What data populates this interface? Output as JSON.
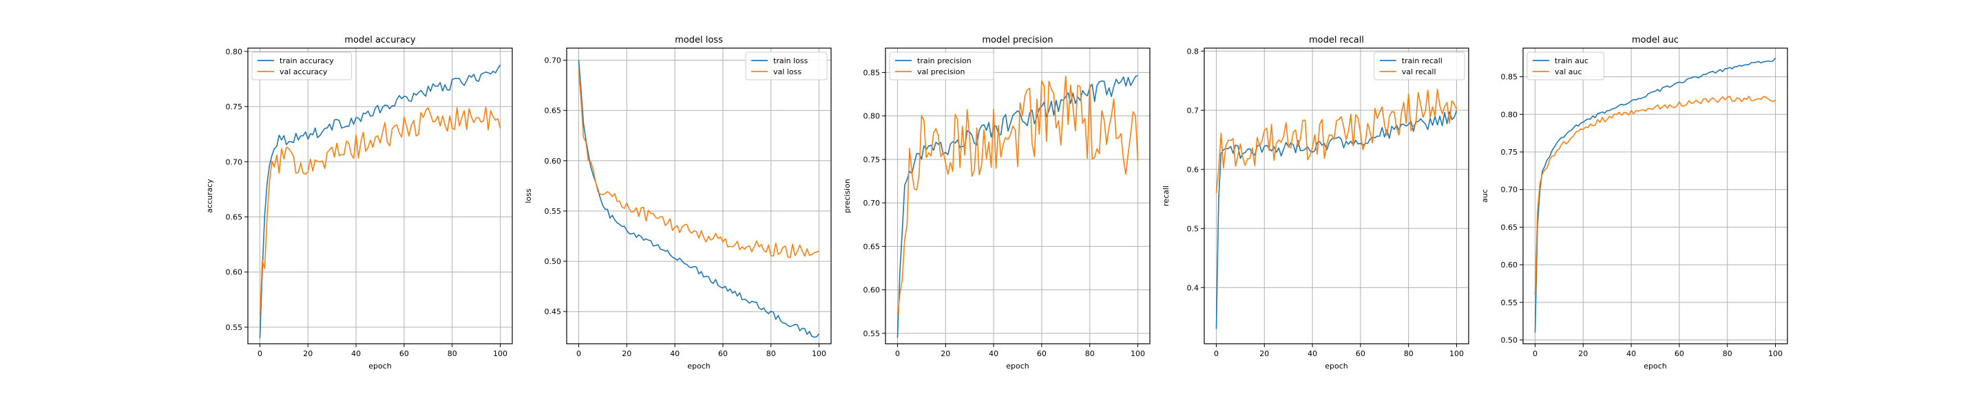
{
  "chart_data": [
    {
      "type": "line",
      "title": "model accuracy",
      "xlabel": "epoch",
      "ylabel": "accuracy",
      "xlim": [
        -5,
        105
      ],
      "ylim": [
        0.535,
        0.803
      ],
      "xticks": [
        0,
        20,
        40,
        60,
        80,
        100
      ],
      "yticks": [
        0.55,
        0.6,
        0.65,
        0.7,
        0.75,
        0.8
      ],
      "ytick_format": 2,
      "legend": "upper left",
      "grid": true,
      "series": [
        {
          "name": "train accuracy",
          "color": "#1f77b4",
          "anchors": [
            [
              0,
              0.54
            ],
            [
              1,
              0.6
            ],
            [
              2,
              0.65
            ],
            [
              3,
              0.68
            ],
            [
              4,
              0.7
            ],
            [
              6,
              0.715
            ],
            [
              8,
              0.722
            ],
            [
              10,
              0.72
            ],
            [
              15,
              0.722
            ],
            [
              20,
              0.725
            ],
            [
              25,
              0.727
            ],
            [
              30,
              0.733
            ],
            [
              40,
              0.738
            ],
            [
              50,
              0.747
            ],
            [
              60,
              0.757
            ],
            [
              70,
              0.765
            ],
            [
              80,
              0.77
            ],
            [
              90,
              0.777
            ],
            [
              96,
              0.78
            ],
            [
              100,
              0.783
            ]
          ],
          "amp": 0.005
        },
        {
          "name": "val accuracy",
          "color": "#ff7f0e",
          "anchors": [
            [
              0,
              0.56
            ],
            [
              1,
              0.61
            ],
            [
              2,
              0.6
            ],
            [
              3,
              0.66
            ],
            [
              5,
              0.69
            ],
            [
              7,
              0.7
            ],
            [
              10,
              0.702
            ],
            [
              15,
              0.7
            ],
            [
              20,
              0.7
            ],
            [
              30,
              0.705
            ],
            [
              40,
              0.713
            ],
            [
              50,
              0.722
            ],
            [
              60,
              0.73
            ],
            [
              70,
              0.737
            ],
            [
              80,
              0.74
            ],
            [
              90,
              0.74
            ],
            [
              96,
              0.737
            ],
            [
              100,
              0.733
            ]
          ],
          "amp": 0.012
        }
      ]
    },
    {
      "type": "line",
      "title": "model loss",
      "xlabel": "epoch",
      "ylabel": "loss",
      "xlim": [
        -5,
        105
      ],
      "ylim": [
        0.418,
        0.712
      ],
      "xticks": [
        0,
        20,
        40,
        60,
        80,
        100
      ],
      "yticks": [
        0.45,
        0.5,
        0.55,
        0.6,
        0.65,
        0.7
      ],
      "ytick_format": 2,
      "legend": "upper right",
      "grid": true,
      "series": [
        {
          "name": "train loss",
          "color": "#1f77b4",
          "anchors": [
            [
              0,
              0.7
            ],
            [
              2,
              0.64
            ],
            [
              4,
              0.605
            ],
            [
              6,
              0.585
            ],
            [
              8,
              0.57
            ],
            [
              10,
              0.555
            ],
            [
              15,
              0.54
            ],
            [
              20,
              0.53
            ],
            [
              30,
              0.518
            ],
            [
              40,
              0.505
            ],
            [
              50,
              0.49
            ],
            [
              60,
              0.475
            ],
            [
              70,
              0.462
            ],
            [
              80,
              0.448
            ],
            [
              90,
              0.435
            ],
            [
              100,
              0.425
            ]
          ],
          "amp": 0.003
        },
        {
          "name": "val loss",
          "color": "#ff7f0e",
          "anchors": [
            [
              0,
              0.69
            ],
            [
              2,
              0.63
            ],
            [
              4,
              0.6
            ],
            [
              6,
              0.585
            ],
            [
              8,
              0.575
            ],
            [
              10,
              0.57
            ],
            [
              15,
              0.562
            ],
            [
              20,
              0.555
            ],
            [
              30,
              0.545
            ],
            [
              40,
              0.535
            ],
            [
              50,
              0.528
            ],
            [
              60,
              0.52
            ],
            [
              70,
              0.515
            ],
            [
              80,
              0.512
            ],
            [
              90,
              0.51
            ],
            [
              100,
              0.512
            ]
          ],
          "amp": 0.007
        }
      ]
    },
    {
      "type": "line",
      "title": "model precision",
      "xlabel": "epoch",
      "ylabel": "precision",
      "xlim": [
        -5,
        105
      ],
      "ylim": [
        0.538,
        0.878
      ],
      "xticks": [
        0,
        20,
        40,
        60,
        80,
        100
      ],
      "yticks": [
        0.55,
        0.6,
        0.65,
        0.7,
        0.75,
        0.8,
        0.85
      ],
      "ytick_format": 2,
      "legend": "upper left",
      "grid": true,
      "series": [
        {
          "name": "train precision",
          "color": "#1f77b4",
          "anchors": [
            [
              0,
              0.545
            ],
            [
              1,
              0.62
            ],
            [
              2,
              0.67
            ],
            [
              3,
              0.71
            ],
            [
              5,
              0.74
            ],
            [
              8,
              0.75
            ],
            [
              10,
              0.755
            ],
            [
              15,
              0.76
            ],
            [
              20,
              0.765
            ],
            [
              30,
              0.775
            ],
            [
              40,
              0.785
            ],
            [
              50,
              0.795
            ],
            [
              60,
              0.805
            ],
            [
              70,
              0.815
            ],
            [
              80,
              0.825
            ],
            [
              90,
              0.832
            ],
            [
              100,
              0.835
            ]
          ],
          "amp": 0.012
        },
        {
          "name": "val precision",
          "color": "#ff7f0e",
          "anchors": [
            [
              0,
              0.57
            ],
            [
              2,
              0.62
            ],
            [
              4,
              0.7
            ],
            [
              6,
              0.74
            ],
            [
              10,
              0.76
            ],
            [
              20,
              0.765
            ],
            [
              30,
              0.77
            ],
            [
              40,
              0.775
            ],
            [
              50,
              0.785
            ],
            [
              60,
              0.8
            ],
            [
              70,
              0.805
            ],
            [
              80,
              0.795
            ],
            [
              90,
              0.785
            ],
            [
              100,
              0.76
            ]
          ],
          "amp": 0.045
        }
      ]
    },
    {
      "type": "line",
      "title": "model recall",
      "xlabel": "epoch",
      "ylabel": "recall",
      "xlim": [
        -5,
        105
      ],
      "ylim": [
        0.305,
        0.805
      ],
      "xticks": [
        0,
        20,
        40,
        60,
        80,
        100
      ],
      "yticks": [
        0.4,
        0.5,
        0.6,
        0.7,
        0.8
      ],
      "ytick_format": 1,
      "legend": "upper right",
      "grid": true,
      "series": [
        {
          "name": "train recall",
          "color": "#1f77b4",
          "anchors": [
            [
              0,
              0.33
            ],
            [
              1,
              0.55
            ],
            [
              2,
              0.62
            ],
            [
              4,
              0.64
            ],
            [
              10,
              0.63
            ],
            [
              20,
              0.632
            ],
            [
              30,
              0.635
            ],
            [
              40,
              0.64
            ],
            [
              50,
              0.645
            ],
            [
              60,
              0.65
            ],
            [
              70,
              0.66
            ],
            [
              80,
              0.67
            ],
            [
              90,
              0.68
            ],
            [
              100,
              0.688
            ]
          ],
          "amp": 0.012
        },
        {
          "name": "val recall",
          "color": "#ff7f0e",
          "anchors": [
            [
              0,
              0.56
            ],
            [
              2,
              0.64
            ],
            [
              4,
              0.61
            ],
            [
              8,
              0.63
            ],
            [
              15,
              0.635
            ],
            [
              20,
              0.64
            ],
            [
              30,
              0.645
            ],
            [
              40,
              0.65
            ],
            [
              50,
              0.655
            ],
            [
              60,
              0.665
            ],
            [
              70,
              0.68
            ],
            [
              80,
              0.7
            ],
            [
              90,
              0.7
            ],
            [
              100,
              0.71
            ]
          ],
          "amp": 0.035
        }
      ]
    },
    {
      "type": "line",
      "title": "model auc",
      "xlabel": "epoch",
      "ylabel": "auc",
      "xlim": [
        -5,
        105
      ],
      "ylim": [
        0.495,
        0.888
      ],
      "xticks": [
        0,
        20,
        40,
        60,
        80,
        100
      ],
      "yticks": [
        0.5,
        0.55,
        0.6,
        0.65,
        0.7,
        0.75,
        0.8,
        0.85
      ],
      "ytick_format": 2,
      "legend": "upper left",
      "grid": true,
      "series": [
        {
          "name": "train auc",
          "color": "#1f77b4",
          "anchors": [
            [
              0,
              0.51
            ],
            [
              1,
              0.65
            ],
            [
              2,
              0.7
            ],
            [
              3,
              0.725
            ],
            [
              5,
              0.74
            ],
            [
              8,
              0.755
            ],
            [
              10,
              0.765
            ],
            [
              15,
              0.78
            ],
            [
              20,
              0.79
            ],
            [
              30,
              0.805
            ],
            [
              40,
              0.818
            ],
            [
              50,
              0.83
            ],
            [
              60,
              0.842
            ],
            [
              70,
              0.852
            ],
            [
              80,
              0.86
            ],
            [
              90,
              0.867
            ],
            [
              100,
              0.873
            ]
          ],
          "amp": 0.002
        },
        {
          "name": "val auc",
          "color": "#ff7f0e",
          "anchors": [
            [
              0,
              0.56
            ],
            [
              1,
              0.67
            ],
            [
              2,
              0.71
            ],
            [
              4,
              0.725
            ],
            [
              6,
              0.74
            ],
            [
              10,
              0.755
            ],
            [
              15,
              0.77
            ],
            [
              20,
              0.78
            ],
            [
              30,
              0.795
            ],
            [
              40,
              0.803
            ],
            [
              50,
              0.808
            ],
            [
              60,
              0.813
            ],
            [
              70,
              0.817
            ],
            [
              80,
              0.82
            ],
            [
              90,
              0.82
            ],
            [
              100,
              0.82
            ]
          ],
          "amp": 0.004
        }
      ]
    }
  ]
}
